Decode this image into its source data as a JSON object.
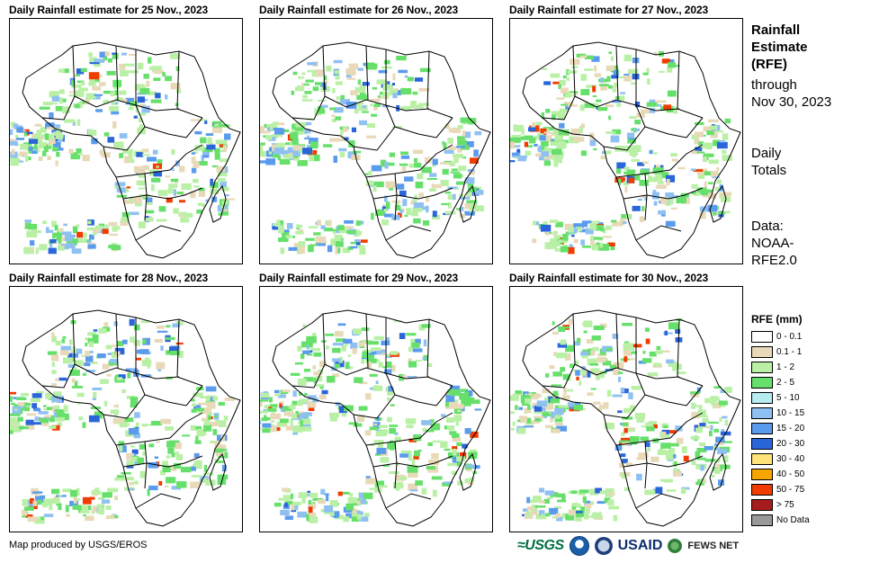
{
  "panels": [
    {
      "title": "Daily Rainfall estimate for 25 Nov., 2023"
    },
    {
      "title": "Daily Rainfall estimate for 26 Nov., 2023"
    },
    {
      "title": "Daily Rainfall estimate for 27 Nov., 2023"
    },
    {
      "title": "Daily Rainfall estimate for 28 Nov., 2023"
    },
    {
      "title": "Daily Rainfall estimate for 29 Nov., 2023"
    },
    {
      "title": "Daily Rainfall estimate for 30 Nov., 2023"
    }
  ],
  "sidebar": {
    "title_lines": [
      "Rainfall",
      "Estimate",
      "(RFE)"
    ],
    "through_lines": [
      "through",
      "Nov 30, 2023"
    ],
    "totals_lines": [
      "Daily",
      "Totals"
    ],
    "data_lines": [
      "Data:",
      "NOAA-",
      "RFE2.0"
    ]
  },
  "legend": {
    "title": "RFE (mm)",
    "items": [
      {
        "label": "0 - 0.1",
        "color": "#ffffff"
      },
      {
        "label": "0.1 - 1",
        "color": "#e8d9b8"
      },
      {
        "label": "1 - 2",
        "color": "#b9f0a6"
      },
      {
        "label": "2 - 5",
        "color": "#67e06b"
      },
      {
        "label": "5 - 10",
        "color": "#b7ecf3"
      },
      {
        "label": "10 - 15",
        "color": "#8fc0f2"
      },
      {
        "label": "15 - 20",
        "color": "#5a9bed"
      },
      {
        "label": "20 - 30",
        "color": "#2a65d9"
      },
      {
        "label": "30 - 40",
        "color": "#fde37a"
      },
      {
        "label": "40 - 50",
        "color": "#f5a400"
      },
      {
        "label": "50 - 75",
        "color": "#f03c00"
      },
      {
        "label": "> 75",
        "color": "#a61c1c"
      },
      {
        "label": "No Data",
        "color": "#999999"
      }
    ]
  },
  "footer": {
    "credit": "Map produced by USGS/EROS",
    "logos": {
      "usgs": "≈USGS",
      "usaid": "USAID",
      "fews": "FEWS NET"
    }
  }
}
